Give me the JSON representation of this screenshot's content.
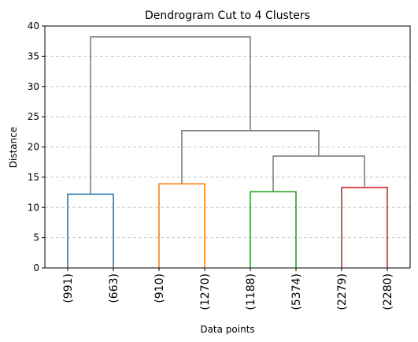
{
  "chart_data": {
    "type": "dendrogram",
    "title": "Dendrogram Cut to 4 Clusters",
    "xlabel": "Data points",
    "ylabel": "Distance",
    "ylim": [
      0,
      40
    ],
    "yticks": [
      "0",
      "5",
      "10",
      "15",
      "20",
      "25",
      "30",
      "35",
      "40"
    ],
    "leaves": [
      "(991)",
      "(663)",
      "(910)",
      "(1270)",
      "(1188)",
      "(5374)",
      "(2279)",
      "(2280)"
    ],
    "grid": "y dashed",
    "links": [
      {
        "left_leaf": 1,
        "right_leaf": 2,
        "height": 12.2,
        "color": "#1f77b4"
      },
      {
        "left_leaf": 3,
        "right_leaf": 4,
        "height": 13.9,
        "color": "#ff7f0e"
      },
      {
        "left_leaf": 5,
        "right_leaf": 6,
        "height": 12.6,
        "color": "#2ca02c"
      },
      {
        "left_leaf": 7,
        "right_leaf": 8,
        "height": 13.3,
        "color": "#d62728"
      },
      {
        "left_child": "leaves 7-8",
        "right_child": "leaves 5-6",
        "height": 18.5,
        "color": "#808080"
      },
      {
        "left_child": "leaves 3-4",
        "right_child": "leaves 5-8",
        "height": 22.7,
        "color": "#808080"
      },
      {
        "left_child": "leaves 1-2",
        "right_child": "leaves 3-8",
        "height": 38.2,
        "color": "#808080"
      }
    ]
  }
}
